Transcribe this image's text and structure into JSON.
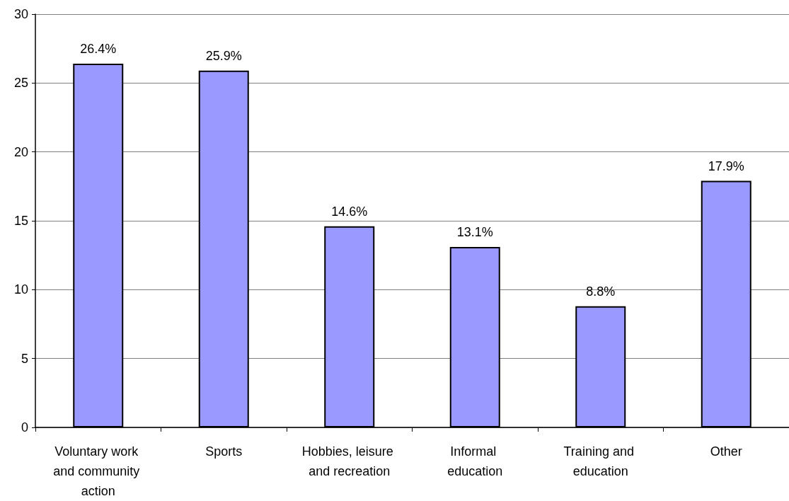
{
  "chart_data": {
    "type": "bar",
    "categories": [
      "Voluntary work and community action",
      "Sports",
      "Hobbies, leisure and recreation",
      "Informal education",
      "Training and education",
      "Other"
    ],
    "values": [
      26.4,
      25.9,
      14.6,
      13.1,
      8.8,
      17.9
    ],
    "value_labels": [
      "26.4%",
      "25.9%",
      "14.6%",
      "13.1%",
      "8.8%",
      "17.9%"
    ],
    "color": "#9999ff",
    "ylim": [
      0,
      30
    ],
    "yticks": [
      0,
      5,
      10,
      15,
      20,
      25,
      30
    ],
    "grid": "y"
  }
}
